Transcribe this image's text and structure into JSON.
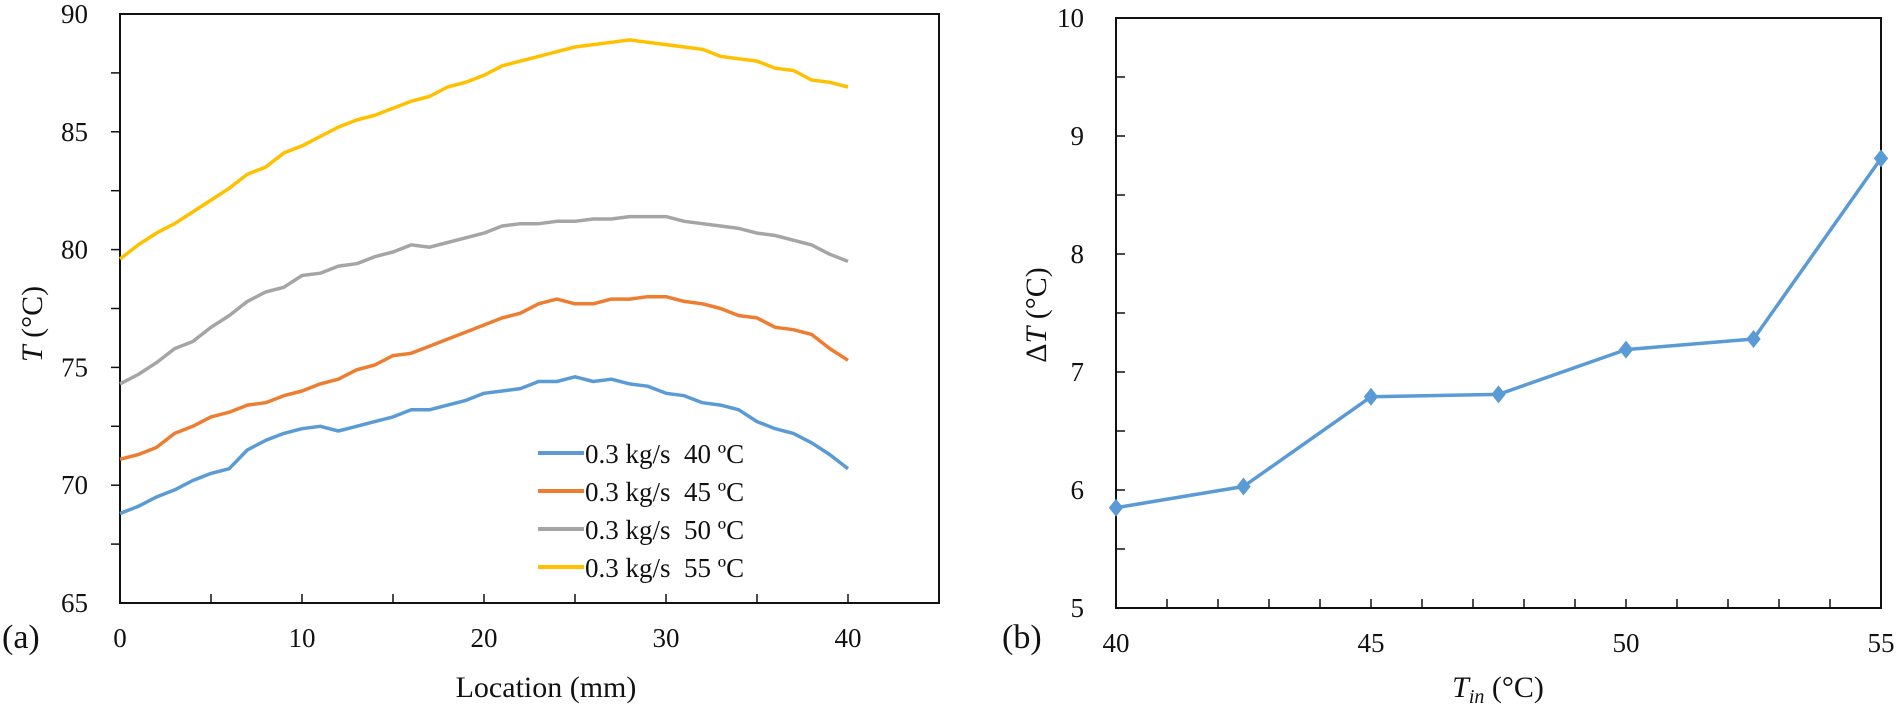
{
  "chart_data": [
    {
      "type": "line",
      "panel_label": "(a)",
      "xlabel": "Location (mm)",
      "ylabel_italic": "T",
      "ylabel_rest": " (°C)",
      "xlim": [
        0,
        45
      ],
      "ylim": [
        65,
        90
      ],
      "xticks": [
        0,
        10,
        20,
        30,
        40
      ],
      "yticks": [
        65,
        70,
        75,
        80,
        85,
        90
      ],
      "grid": false,
      "legend_position": "bottom-right",
      "x": [
        0,
        1,
        2,
        3,
        4,
        5,
        6,
        7,
        8,
        9,
        10,
        11,
        12,
        13,
        14,
        15,
        16,
        17,
        18,
        19,
        20,
        21,
        22,
        23,
        24,
        25,
        26,
        27,
        28,
        29,
        30,
        31,
        32,
        33,
        34,
        35,
        36,
        37,
        38,
        39,
        40
      ],
      "series": [
        {
          "name": "0.3 kg/s  40 ºC",
          "color": "#5B9BD5",
          "values": [
            68.8,
            69.1,
            69.5,
            69.8,
            70.2,
            70.5,
            70.7,
            71.5,
            71.9,
            72.2,
            72.4,
            72.5,
            72.3,
            72.5,
            72.7,
            72.9,
            73.2,
            73.2,
            73.4,
            73.6,
            73.9,
            74.0,
            74.1,
            74.4,
            74.4,
            74.6,
            74.4,
            74.5,
            74.3,
            74.2,
            73.9,
            73.8,
            73.5,
            73.4,
            73.2,
            72.7,
            72.4,
            72.2,
            71.8,
            71.3,
            70.7
          ]
        },
        {
          "name": "0.3 kg/s  45 ºC",
          "color": "#ED7D31",
          "values": [
            71.1,
            71.3,
            71.6,
            72.2,
            72.5,
            72.9,
            73.1,
            73.4,
            73.5,
            73.8,
            74.0,
            74.3,
            74.5,
            74.9,
            75.1,
            75.5,
            75.6,
            75.9,
            76.2,
            76.5,
            76.8,
            77.1,
            77.3,
            77.7,
            77.9,
            77.7,
            77.7,
            77.9,
            77.9,
            78.0,
            78.0,
            77.8,
            77.7,
            77.5,
            77.2,
            77.1,
            76.7,
            76.6,
            76.4,
            75.8,
            75.3
          ]
        },
        {
          "name": "0.3 kg/s  50 ºC",
          "color": "#A5A5A5",
          "values": [
            74.3,
            74.7,
            75.2,
            75.8,
            76.1,
            76.7,
            77.2,
            77.8,
            78.2,
            78.4,
            78.9,
            79.0,
            79.3,
            79.4,
            79.7,
            79.9,
            80.2,
            80.1,
            80.3,
            80.5,
            80.7,
            81.0,
            81.1,
            81.1,
            81.2,
            81.2,
            81.3,
            81.3,
            81.4,
            81.4,
            81.4,
            81.2,
            81.1,
            81.0,
            80.9,
            80.7,
            80.6,
            80.4,
            80.2,
            79.8,
            79.5
          ]
        },
        {
          "name": "0.3 kg/s  55 ºC",
          "color": "#FFC000",
          "values": [
            79.6,
            80.2,
            80.7,
            81.1,
            81.6,
            82.1,
            82.6,
            83.2,
            83.5,
            84.1,
            84.4,
            84.8,
            85.2,
            85.5,
            85.7,
            86.0,
            86.3,
            86.5,
            86.9,
            87.1,
            87.4,
            87.8,
            88.0,
            88.2,
            88.4,
            88.6,
            88.7,
            88.8,
            88.9,
            88.8,
            88.7,
            88.6,
            88.5,
            88.2,
            88.1,
            88.0,
            87.7,
            87.6,
            87.2,
            87.1,
            86.9
          ]
        }
      ]
    },
    {
      "type": "line",
      "panel_label": "(b)",
      "xlabel_italic": "T",
      "xlabel_sub": "in",
      "xlabel_rest": " (°C)",
      "ylabel_prefix": "Δ",
      "ylabel_italic": "T",
      "ylabel_rest": " (°C)",
      "xlim": [
        40,
        55
      ],
      "ylim": [
        5,
        10
      ],
      "xticks": [
        40,
        45,
        50,
        55
      ],
      "yticks": [
        5,
        6,
        7,
        8,
        9,
        10
      ],
      "grid": false,
      "marker": "diamond",
      "series": [
        {
          "color": "#5B9BD5",
          "x": [
            40,
            42.5,
            45,
            47.5,
            50,
            52.5,
            55
          ],
          "values": [
            5.85,
            6.03,
            6.79,
            6.81,
            7.19,
            7.28,
            8.81
          ]
        }
      ]
    }
  ]
}
